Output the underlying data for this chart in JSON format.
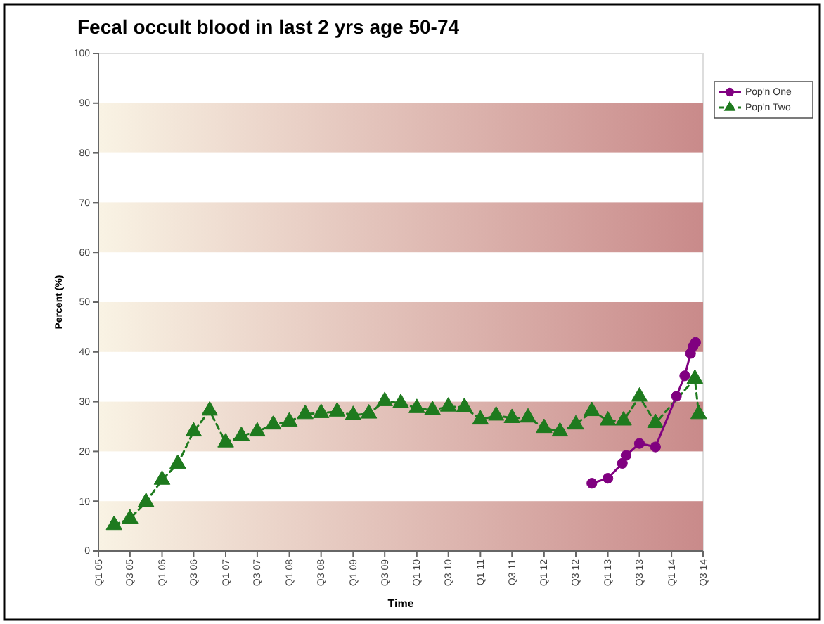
{
  "chart_data": {
    "type": "line",
    "title": "Fecal occult blood in last 2 yrs age 50-74",
    "xlabel": "Time",
    "ylabel": "Percent (%)",
    "xlim": [
      "2005-01",
      "2014-07"
    ],
    "xticks": [
      {
        "value": "2005-01",
        "label": "Q1 05"
      },
      {
        "value": "2005-07",
        "label": "Q3 05"
      },
      {
        "value": "2006-01",
        "label": "Q1 06"
      },
      {
        "value": "2006-07",
        "label": "Q3 06"
      },
      {
        "value": "2007-01",
        "label": "Q1 07"
      },
      {
        "value": "2007-07",
        "label": "Q3 07"
      },
      {
        "value": "2008-01",
        "label": "Q1 08"
      },
      {
        "value": "2008-07",
        "label": "Q3 08"
      },
      {
        "value": "2009-01",
        "label": "Q1 09"
      },
      {
        "value": "2009-07",
        "label": "Q3 09"
      },
      {
        "value": "2010-01",
        "label": "Q1 10"
      },
      {
        "value": "2010-07",
        "label": "Q3 10"
      },
      {
        "value": "2011-01",
        "label": "Q1 11"
      },
      {
        "value": "2011-07",
        "label": "Q3 11"
      },
      {
        "value": "2012-01",
        "label": "Q1 12"
      },
      {
        "value": "2012-07",
        "label": "Q3 12"
      },
      {
        "value": "2013-01",
        "label": "Q1 13"
      },
      {
        "value": "2013-07",
        "label": "Q3 13"
      },
      {
        "value": "2014-01",
        "label": "Q1 14"
      },
      {
        "value": "2014-07",
        "label": "Q3 14"
      }
    ],
    "ylim": [
      0,
      100
    ],
    "yticks": [
      0,
      10,
      20,
      30,
      40,
      50,
      60,
      70,
      80,
      90,
      100
    ],
    "grid": false,
    "legend": "top right",
    "bands": [
      {
        "axis": "y",
        "from": 0,
        "to": 10,
        "color": "#c98a8a"
      },
      {
        "axis": "y",
        "from": 20,
        "to": 30,
        "color": "#c98a8a"
      },
      {
        "axis": "y",
        "from": 40,
        "to": 50,
        "color": "#c98a8a"
      },
      {
        "axis": "y",
        "from": 60,
        "to": 70,
        "color": "#c98a8a"
      },
      {
        "axis": "y",
        "from": 80,
        "to": 90,
        "color": "#c98a8a"
      }
    ],
    "series": [
      {
        "name": "Pop'n One",
        "color": "#800080",
        "marker": "circle",
        "line_style": "solid",
        "x": [
          "2012-10",
          "2013-01",
          "2013-03-25",
          "2013-04-15",
          "2013-07",
          "2013-10",
          "2014-01-29",
          "2014-03-18",
          "2014-04-20",
          "2014-05-04",
          "2014-05-19"
        ],
        "values": [
          13.6,
          14.6,
          17.6,
          19.2,
          21.6,
          20.9,
          31.1,
          35.2,
          39.7,
          41.1,
          41.9
        ]
      },
      {
        "name": "Pop'n Two",
        "color": "#1e7a1e",
        "marker": "triangle",
        "line_style": "dashed",
        "x": [
          "2005-04",
          "2005-07",
          "2005-10",
          "2006-01",
          "2006-04",
          "2006-07",
          "2006-10",
          "2007-01",
          "2007-04",
          "2007-07",
          "2007-10",
          "2008-01",
          "2008-04",
          "2008-07",
          "2008-10",
          "2009-01",
          "2009-04",
          "2009-07",
          "2009-10",
          "2010-01",
          "2010-04",
          "2010-07",
          "2010-10",
          "2011-01",
          "2011-04",
          "2011-07",
          "2011-10",
          "2012-01",
          "2012-04",
          "2012-07",
          "2012-10",
          "2013-01",
          "2013-04",
          "2013-07",
          "2013-10",
          "2014-05-15",
          "2014-06-06"
        ],
        "values": [
          5.2,
          6.5,
          9.8,
          14.3,
          17.5,
          24,
          28.2,
          21.8,
          23.1,
          24,
          25.4,
          26,
          27.5,
          27.7,
          28,
          27.3,
          27.6,
          30.1,
          29.7,
          28.7,
          28.3,
          29,
          28.9,
          26.4,
          27.2,
          26.7,
          26.8,
          24.7,
          24,
          25.4,
          28.1,
          26.2,
          26.2,
          31,
          25.7,
          34.6,
          27.5
        ]
      }
    ]
  }
}
